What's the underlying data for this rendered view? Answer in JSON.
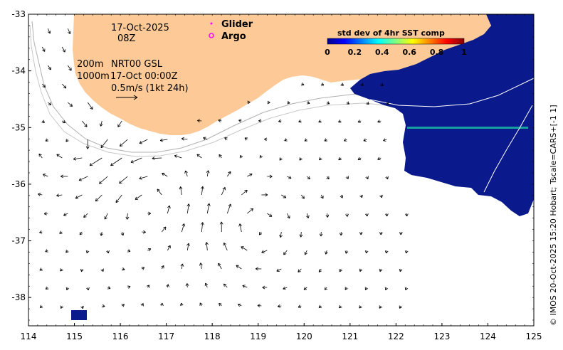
{
  "map": {
    "date": "17-Oct-2025",
    "hour": "08Z",
    "iso_label": "200m",
    "iso_label2": "1000m",
    "product": "NRT00 GSL",
    "product_time": "17-Oct 00:00Z",
    "scale_label": "0.5m/s (1kt 24h)"
  },
  "legend": {
    "glider": "Glider",
    "argo": "Argo",
    "colorbar_title": "std dev of 4hr SST comp",
    "colorbar_ticks": [
      "0",
      "0.2",
      "0.4",
      "0.6",
      "0.8",
      "1"
    ],
    "colormap": [
      "#00008f",
      "#0000ff",
      "#0080ff",
      "#00ffff",
      "#80ff80",
      "#ffff00",
      "#ff8000",
      "#ff0000",
      "#800000"
    ]
  },
  "axes": {
    "x_ticks": [
      "114",
      "115",
      "116",
      "117",
      "118",
      "119",
      "120",
      "121",
      "122",
      "123",
      "124",
      "125"
    ],
    "y_ticks": [
      "-33",
      "-34",
      "-35",
      "-36",
      "-37",
      "-38"
    ],
    "x_range": [
      114,
      125
    ],
    "y_range": [
      -38.5,
      -33
    ]
  },
  "credit": "© IMOS 20-Oct-2025 15:20 Hobart; Tscale=CARS+[-1 1]",
  "colors": {
    "land": "#fdca97",
    "glider": "#ff00ff",
    "argo": "#ff00ff",
    "sst_blue": "#0a1a8c"
  }
}
